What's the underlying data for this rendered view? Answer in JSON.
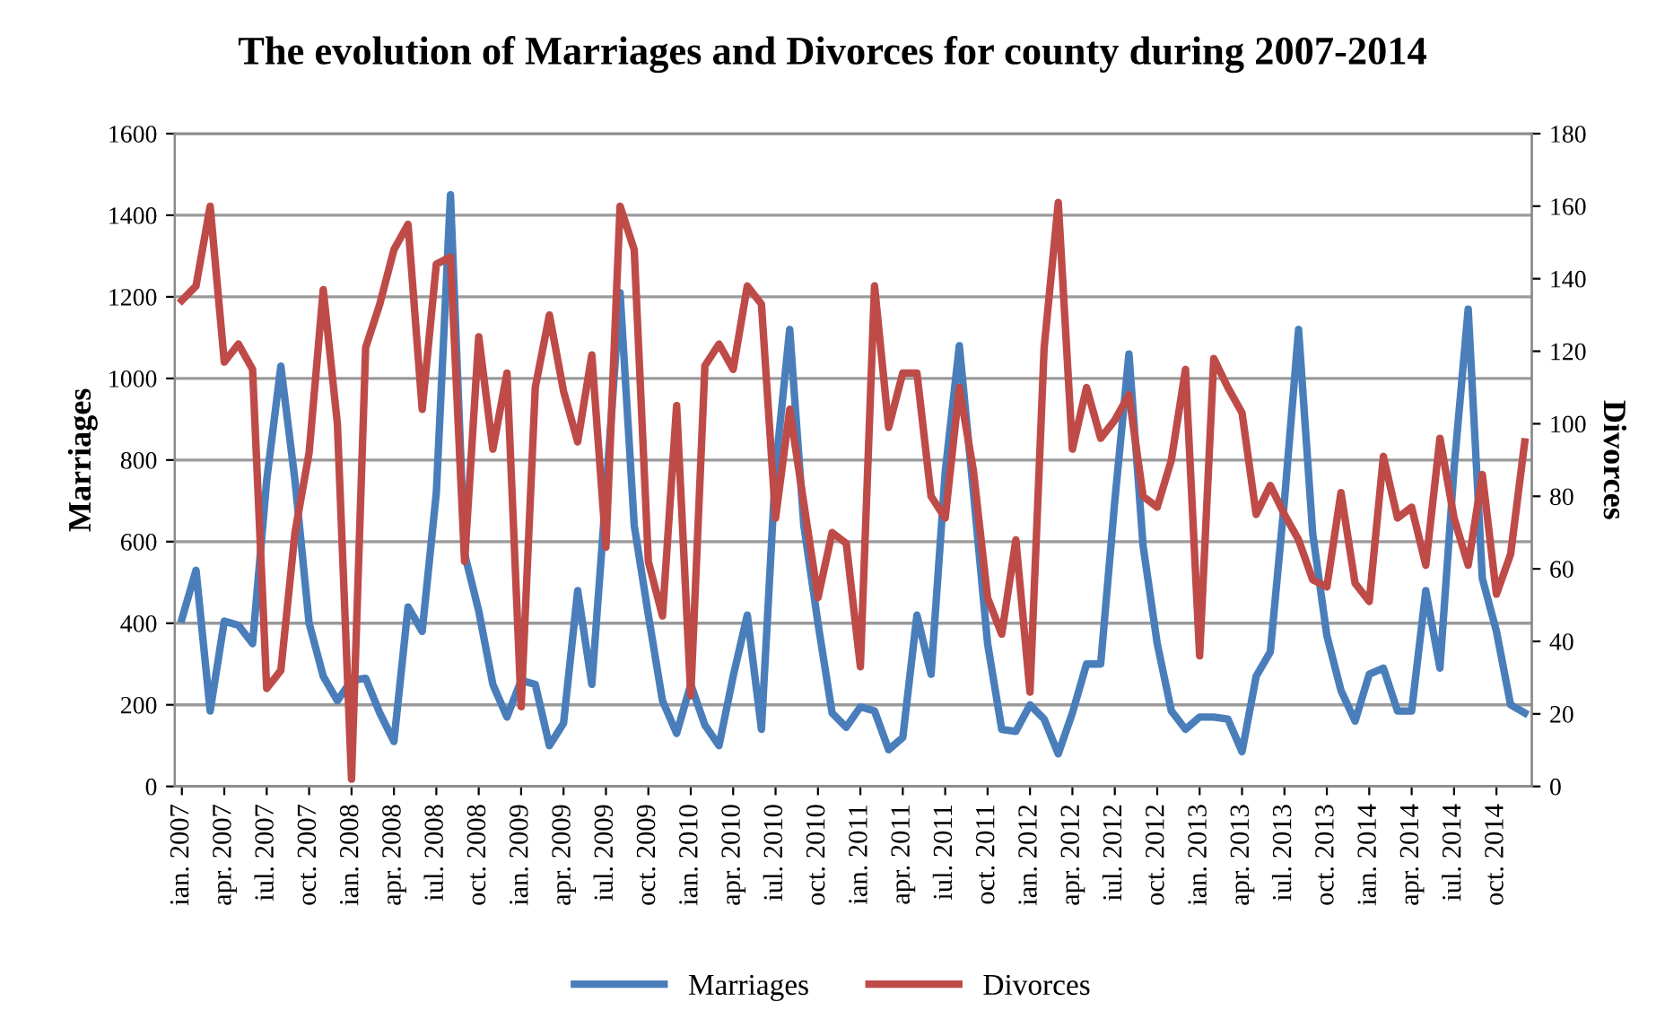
{
  "chart_data": {
    "type": "line",
    "title": "The evolution of Marriages and Divorces for county during 2007-2014",
    "ylabel": "Marriages",
    "y2label": "Divorces",
    "categories": [
      "ian. 2007",
      null,
      null,
      "apr. 2007",
      null,
      null,
      "iul. 2007",
      null,
      null,
      "oct. 2007",
      null,
      null,
      "ian. 2008",
      null,
      null,
      "apr. 2008",
      null,
      null,
      "iul. 2008",
      null,
      null,
      "oct. 2008",
      null,
      null,
      "ian. 2009",
      null,
      null,
      "apr. 2009",
      null,
      null,
      "iul. 2009",
      null,
      null,
      "oct. 2009",
      null,
      null,
      "ian. 2010",
      null,
      null,
      "apr. 2010",
      null,
      null,
      "iul. 2010",
      null,
      null,
      "oct. 2010",
      null,
      null,
      "ian. 2011",
      null,
      null,
      "apr. 2011",
      null,
      null,
      "iul. 2011",
      null,
      null,
      "oct. 2011",
      null,
      null,
      "ian. 2012",
      null,
      null,
      "apr. 2012",
      null,
      null,
      "iul. 2012",
      null,
      null,
      "oct. 2012",
      null,
      null,
      "ian. 2013",
      null,
      null,
      "apr. 2013",
      null,
      null,
      "iul. 2013",
      null,
      null,
      "oct. 2013",
      null,
      null,
      "ian. 2014",
      null,
      null,
      "apr. 2014",
      null,
      null,
      "iul. 2014",
      null,
      null,
      "oct. 2014",
      null,
      null
    ],
    "series": [
      {
        "name": "Marriages",
        "color": "#4a7ebb",
        "values": [
          410,
          530,
          185,
          405,
          395,
          350,
          750,
          1030,
          750,
          400,
          270,
          210,
          260,
          265,
          180,
          110,
          440,
          380,
          720,
          1450,
          570,
          430,
          250,
          170,
          260,
          250,
          100,
          155,
          480,
          250,
          720,
          1210,
          640,
          420,
          210,
          130,
          250,
          150,
          100,
          270,
          420,
          140,
          780,
          1120,
          640,
          400,
          180,
          145,
          195,
          185,
          90,
          120,
          420,
          275,
          770,
          1080,
          720,
          350,
          140,
          135,
          200,
          165,
          80,
          180,
          300,
          300,
          700,
          1060,
          590,
          350,
          185,
          140,
          170,
          170,
          165,
          85,
          270,
          330,
          700,
          1120,
          620,
          370,
          235,
          160,
          275,
          290,
          185,
          185,
          480,
          290,
          780,
          1170,
          510,
          380,
          200,
          180
        ]
      },
      {
        "name": "Divorces",
        "color": "#be4b48",
        "axis": "y2",
        "values": [
          134,
          138,
          160,
          117,
          122,
          115,
          27,
          32,
          70,
          92,
          137,
          100,
          2,
          121,
          133,
          148,
          155,
          104,
          144,
          146,
          62,
          124,
          93,
          114,
          22,
          110,
          130,
          109,
          95,
          119,
          66,
          160,
          148,
          62,
          47,
          105,
          25,
          116,
          122,
          115,
          138,
          133,
          74,
          104,
          78,
          52,
          70,
          67,
          33,
          138,
          99,
          114,
          114,
          80,
          74,
          110,
          87,
          52,
          42,
          68,
          26,
          121,
          161,
          93,
          110,
          96,
          101,
          108,
          80,
          77,
          90,
          115,
          36,
          118,
          110,
          103,
          75,
          83,
          75,
          68,
          57,
          55,
          81,
          56,
          51,
          91,
          74,
          77,
          61,
          96,
          74,
          61,
          86,
          53,
          64,
          95
        ]
      }
    ],
    "ylim": [
      0,
      1600
    ],
    "yticks": [
      0,
      200,
      400,
      600,
      800,
      1000,
      1200,
      1400,
      1600
    ],
    "y2lim": [
      0,
      180
    ],
    "y2ticks": [
      0,
      20,
      40,
      60,
      80,
      100,
      120,
      140,
      160,
      180
    ],
    "grid": "y",
    "legend": "bottom",
    "marker": "none",
    "line_style": "solid"
  }
}
